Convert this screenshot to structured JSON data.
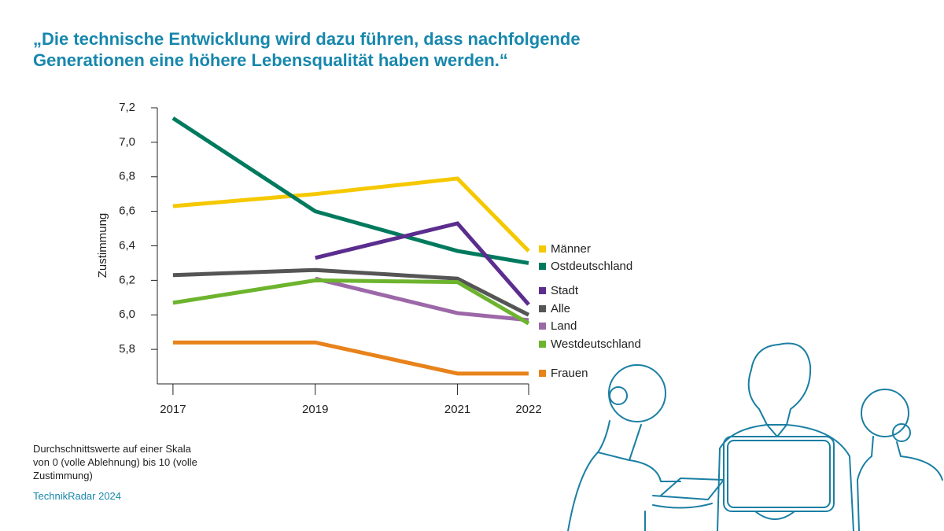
{
  "chart_data": {
    "type": "line",
    "title": "„Die technische Entwicklung wird dazu führen, dass nachfolgende Generationen eine höhere Lebensqualität haben werden.“",
    "y_label": "Zustimmung",
    "note": "Durchschnittswerte auf einer Skala von 0 (volle Ablehnung) bis 10 (volle Zustimmung)",
    "source": "TechnikRadar 2024",
    "x": [
      2017,
      2019,
      2021,
      2022
    ],
    "xlim": [
      2016.78,
      2022
    ],
    "xticks": [
      2017,
      2019,
      2021,
      2022
    ],
    "ylim": [
      5.6,
      7.2
    ],
    "yticks": [
      {
        "value": 5.8,
        "label": "5,8"
      },
      {
        "value": 6.0,
        "label": "6,0"
      },
      {
        "value": 6.2,
        "label": "6,2"
      },
      {
        "value": 6.4,
        "label": "6,4"
      },
      {
        "value": 6.6,
        "label": "6,6"
      },
      {
        "value": 6.8,
        "label": "6,8"
      },
      {
        "value": 7.0,
        "label": "7,0"
      },
      {
        "value": 7.2,
        "label": "7,2"
      }
    ],
    "series": [
      {
        "name": "Männer",
        "color": "#f5c800",
        "values": [
          6.63,
          6.7,
          6.79,
          6.37
        ]
      },
      {
        "name": "Ostdeutschland",
        "color": "#007a5e",
        "values": [
          7.14,
          6.6,
          6.37,
          6.3
        ]
      },
      {
        "name": "Stadt",
        "color": "#5b2d8e",
        "values": [
          null,
          6.33,
          6.53,
          6.06
        ]
      },
      {
        "name": "Alle",
        "color": "#555555",
        "values": [
          6.23,
          6.26,
          6.21,
          6.0
        ]
      },
      {
        "name": "Land",
        "color": "#9c68a8",
        "values": [
          null,
          6.21,
          6.01,
          5.97
        ]
      },
      {
        "name": "Westdeutschland",
        "color": "#6db42e",
        "values": [
          6.07,
          6.2,
          6.19,
          5.95
        ]
      },
      {
        "name": "Frauen",
        "color": "#e8821a",
        "values": [
          5.84,
          5.84,
          5.66,
          5.66
        ]
      }
    ]
  }
}
